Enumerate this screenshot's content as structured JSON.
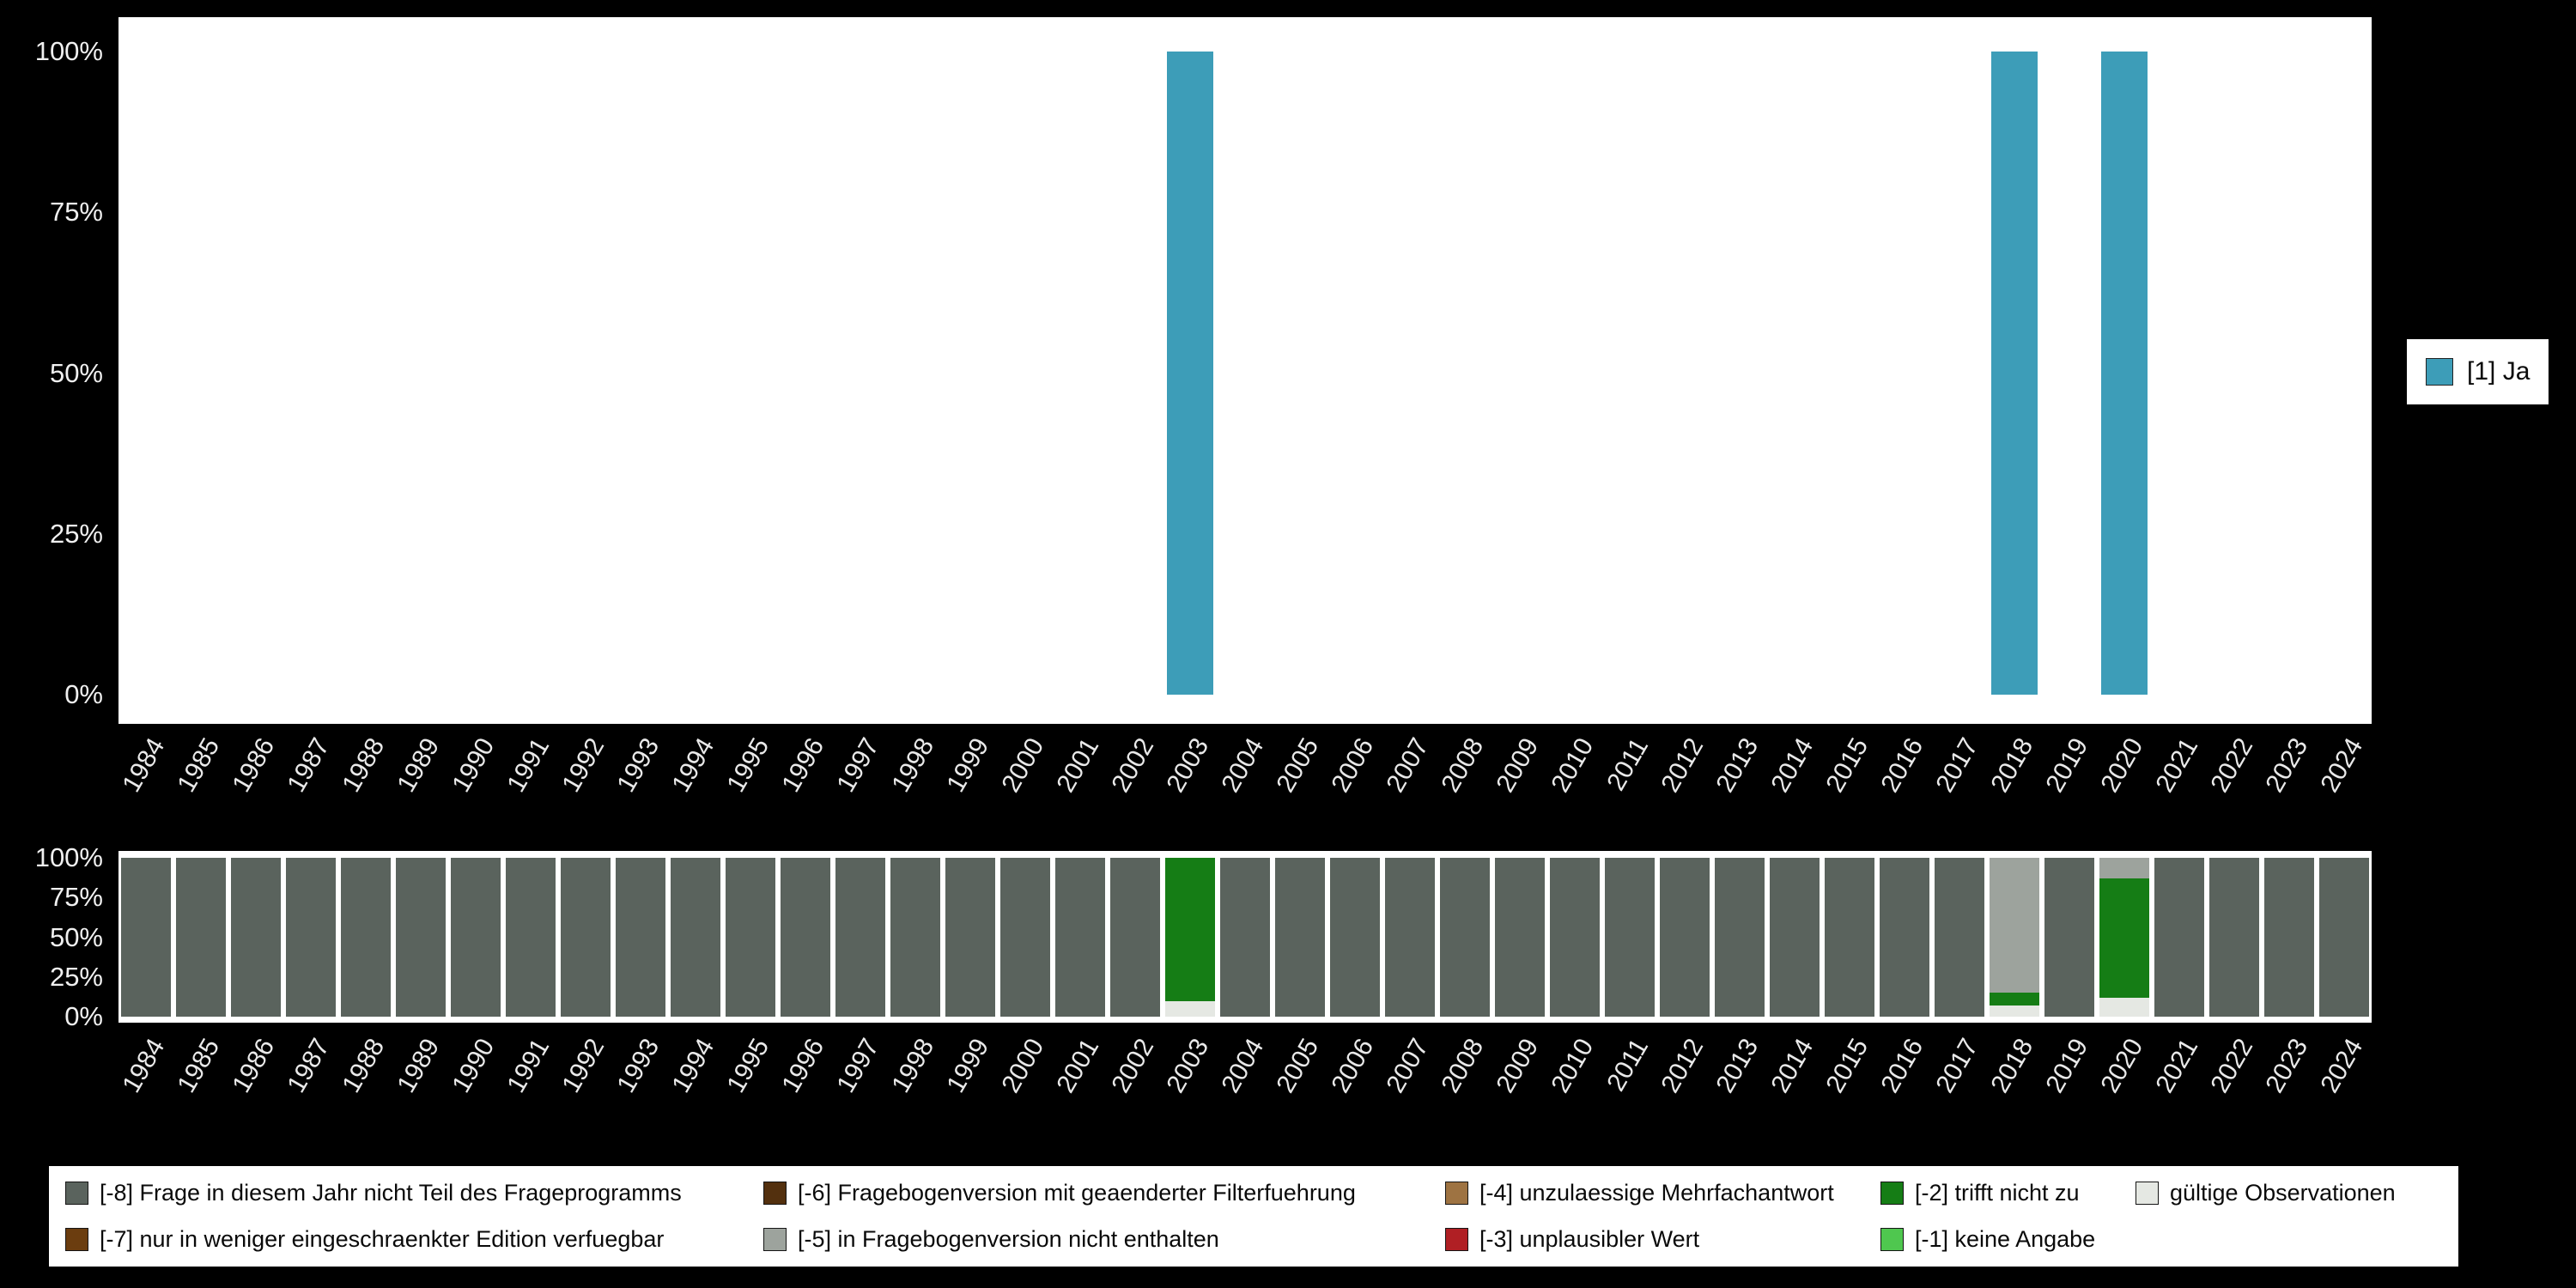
{
  "page": {
    "background": "#000000"
  },
  "top_legend": {
    "label": "[1] Ja",
    "color": "#3D9DB8"
  },
  "chart_data": [
    {
      "type": "bar",
      "title": "",
      "categories": [
        "1984",
        "1985",
        "1986",
        "1987",
        "1988",
        "1989",
        "1990",
        "1991",
        "1992",
        "1993",
        "1994",
        "1995",
        "1996",
        "1997",
        "1998",
        "1999",
        "2000",
        "2001",
        "2002",
        "2003",
        "2004",
        "2005",
        "2006",
        "2007",
        "2008",
        "2009",
        "2010",
        "2011",
        "2012",
        "2013",
        "2014",
        "2015",
        "2016",
        "2017",
        "2018",
        "2019",
        "2020",
        "2021",
        "2022",
        "2023",
        "2024"
      ],
      "series": [
        {
          "name": "[1] Ja",
          "key": "ja",
          "color": "#3D9DB8",
          "values": [
            0,
            0,
            0,
            0,
            0,
            0,
            0,
            0,
            0,
            0,
            0,
            0,
            0,
            0,
            0,
            0,
            0,
            0,
            0,
            100,
            0,
            0,
            0,
            0,
            0,
            0,
            0,
            0,
            0,
            0,
            0,
            0,
            0,
            0,
            100,
            0,
            100,
            0,
            0,
            0,
            0
          ]
        }
      ],
      "ylim": [
        0,
        100
      ],
      "yticks": [
        "0%",
        "25%",
        "50%",
        "75%",
        "100%"
      ],
      "grid": false,
      "legend_position": "right"
    },
    {
      "type": "stacked-bar",
      "title": "",
      "categories": [
        "1984",
        "1985",
        "1986",
        "1987",
        "1988",
        "1989",
        "1990",
        "1991",
        "1992",
        "1993",
        "1994",
        "1995",
        "1996",
        "1997",
        "1998",
        "1999",
        "2000",
        "2001",
        "2002",
        "2003",
        "2004",
        "2005",
        "2006",
        "2007",
        "2008",
        "2009",
        "2010",
        "2011",
        "2012",
        "2013",
        "2014",
        "2015",
        "2016",
        "2017",
        "2018",
        "2019",
        "2020",
        "2021",
        "2022",
        "2023",
        "2024"
      ],
      "series": [
        {
          "name": "gültige Observationen",
          "key": "valid",
          "color": "#E5E8E3",
          "values": [
            0,
            0,
            0,
            0,
            0,
            0,
            0,
            0,
            0,
            0,
            0,
            0,
            0,
            0,
            0,
            0,
            0,
            0,
            0,
            10,
            0,
            0,
            0,
            0,
            0,
            0,
            0,
            0,
            0,
            0,
            0,
            0,
            0,
            0,
            7,
            0,
            12,
            0,
            0,
            0,
            0
          ]
        },
        {
          "name": "[-2] trifft nicht zu",
          "key": "m2",
          "color": "#157D15",
          "values": [
            0,
            0,
            0,
            0,
            0,
            0,
            0,
            0,
            0,
            0,
            0,
            0,
            0,
            0,
            0,
            0,
            0,
            0,
            0,
            90,
            0,
            0,
            0,
            0,
            0,
            0,
            0,
            0,
            0,
            0,
            0,
            0,
            0,
            0,
            8,
            0,
            75,
            0,
            0,
            0,
            0
          ]
        },
        {
          "name": "[-5] in Fragebogenversion nicht enthalten",
          "key": "m5",
          "color": "#9DA39D",
          "values": [
            0,
            0,
            0,
            0,
            0,
            0,
            0,
            0,
            0,
            0,
            0,
            0,
            0,
            0,
            0,
            0,
            0,
            0,
            0,
            0,
            0,
            0,
            0,
            0,
            0,
            0,
            0,
            0,
            0,
            0,
            0,
            0,
            0,
            0,
            85,
            0,
            13,
            0,
            0,
            0,
            0
          ]
        },
        {
          "name": "[-8] Frage in diesem Jahr nicht Teil des Frageprogramms",
          "key": "m8",
          "color": "#5A635D",
          "values": [
            100,
            100,
            100,
            100,
            100,
            100,
            100,
            100,
            100,
            100,
            100,
            100,
            100,
            100,
            100,
            100,
            100,
            100,
            100,
            0,
            100,
            100,
            100,
            100,
            100,
            100,
            100,
            100,
            100,
            100,
            100,
            100,
            100,
            100,
            0,
            100,
            0,
            100,
            100,
            100,
            100
          ]
        }
      ],
      "ylim": [
        0,
        100
      ],
      "yticks": [
        "0%",
        "25%",
        "50%",
        "75%",
        "100%"
      ],
      "grid": false,
      "legend_position": "bottom"
    }
  ],
  "legend_bottom": {
    "items": [
      {
        "label": "[-8] Frage in diesem Jahr nicht Teil des Frageprogramms",
        "color": "#5A635D"
      },
      {
        "label": "[-6] Fragebogenversion mit geaenderter Filterfuehrung",
        "color": "#53300E"
      },
      {
        "label": "[-4] unzulaessige Mehrfachantwort",
        "color": "#9E7342"
      },
      {
        "label": "[-2] trifft nicht zu",
        "color": "#157D15"
      },
      {
        "label": "gültige Observationen",
        "color": "#E5E8E3"
      },
      {
        "label": "[-7] nur in weniger eingeschraenkter Edition verfuegbar",
        "color": "#6B3D0F"
      },
      {
        "label": "[-5] in Fragebogenversion nicht enthalten",
        "color": "#9DA39D"
      },
      {
        "label": "[-3] unplausibler Wert",
        "color": "#B01F24"
      },
      {
        "label": "[-1] keine Angabe",
        "color": "#4FC74F"
      }
    ]
  }
}
